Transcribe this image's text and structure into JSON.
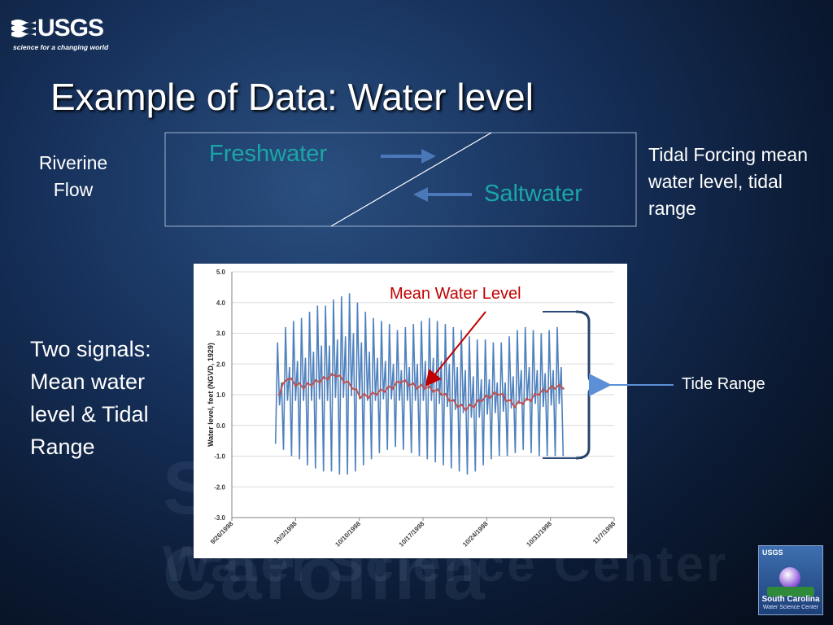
{
  "logo": {
    "name": "USGS",
    "tagline": "science for a changing world"
  },
  "title": "Example of Data: Water level",
  "diagram": {
    "freshwater": "Freshwater",
    "saltwater": "Saltwater"
  },
  "riverine": "Riverine Flow",
  "tidal_forcing": "Tidal Forcing mean water level, tidal range",
  "two_signals": "Two signals: Mean water level & Tidal Range",
  "mean_label": "Mean Water Level",
  "tide_range_label": "Tide Range",
  "sc_logo": {
    "line1": "South Carolina",
    "line2": "Water Science Center",
    "mini": "USGS"
  },
  "watermark": {
    "line1": "South Carolina",
    "line2": "Water Science Center"
  },
  "colors": {
    "tide_series": "#4f81bd",
    "mean_series": "#c0504d",
    "accent_teal": "#1aa6a6",
    "arrow_blue": "#4a78b8"
  },
  "chart_data": {
    "type": "line",
    "title": "",
    "xlabel": "",
    "ylabel": "Water level, feet (NGVD, 1929)",
    "ylim": [
      -3.0,
      5.0
    ],
    "yticks": [
      "5.0",
      "4.0",
      "3.0",
      "2.0",
      "1.0",
      "0.0",
      "-1.0",
      "-2.0",
      "-3.0"
    ],
    "xticks": [
      "9/26/1998",
      "10/3/1998",
      "10/10/1998",
      "10/17/1998",
      "10/24/1998",
      "10/31/1998",
      "11/7/1998"
    ],
    "xrange_days": [
      0,
      42
    ],
    "grid": true,
    "legend": "none",
    "series": [
      {
        "type": "tide",
        "start_day": 4.8,
        "end_day": 36.4,
        "highs": [
          2.7,
          3.2,
          3.4,
          3.5,
          3.7,
          3.9,
          3.9,
          4.1,
          4.2,
          4.3,
          4.0,
          3.7,
          3.5,
          3.4,
          3.3,
          3.1,
          3.2,
          3.3,
          3.4,
          3.5,
          3.4,
          3.3,
          3.2,
          3.1,
          2.9,
          2.8,
          2.8,
          2.7,
          2.7,
          2.9,
          3.1,
          3.2,
          3.1,
          3.0,
          3.1,
          3.2
        ],
        "lows": [
          -0.6,
          -0.8,
          -1.0,
          -1.1,
          -1.3,
          -1.4,
          -1.5,
          -1.5,
          -1.6,
          -1.6,
          -1.5,
          -1.3,
          -1.1,
          -0.9,
          -0.8,
          -0.7,
          -0.8,
          -0.9,
          -1.0,
          -1.1,
          -1.2,
          -1.3,
          -1.4,
          -1.5,
          -1.6,
          -1.5,
          -1.3,
          -1.1,
          -1.0,
          -1.0,
          -0.9,
          -0.8,
          -0.9,
          -1.0,
          -1.0,
          -1.0
        ]
      },
      {
        "type": "mean",
        "start_day": 5.2,
        "end_day": 36.4,
        "values": [
          1.0,
          1.5,
          1.3,
          1.2,
          1.3,
          1.4,
          1.5,
          1.6,
          1.4,
          1.2,
          0.9,
          0.9,
          1.0,
          1.1,
          1.2,
          1.4,
          1.3,
          1.2,
          1.2,
          1.1,
          1.0,
          0.8,
          0.6,
          0.5,
          0.6,
          0.8,
          0.9,
          1.0,
          0.8,
          0.6,
          0.7,
          0.8,
          1.0,
          1.1,
          1.2,
          1.2
        ]
      }
    ]
  }
}
